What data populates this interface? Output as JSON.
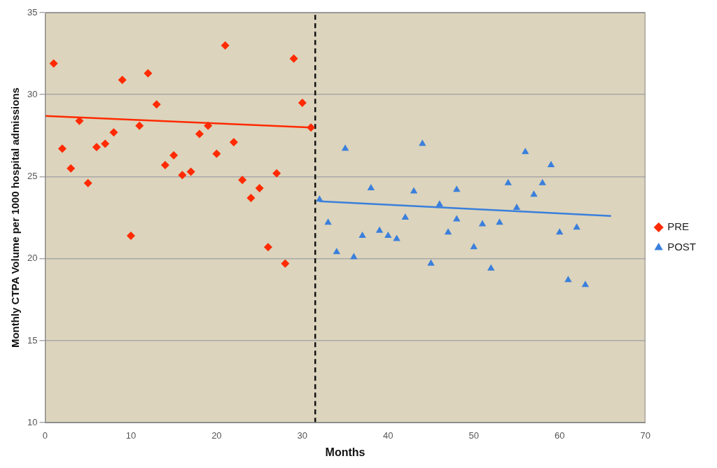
{
  "chart_data": {
    "type": "scatter",
    "x_label": "Months",
    "y_label": "Monthly CTPA Volume per 1000 hospital admissions",
    "xlim": [
      0,
      70
    ],
    "xticks": [
      0,
      10,
      20,
      30,
      40,
      50,
      60,
      70
    ],
    "ylim": [
      10,
      35
    ],
    "yticks": [
      10,
      15,
      20,
      25,
      30,
      35
    ],
    "grid": "y",
    "legend": "right",
    "series": [
      {
        "name": "PRE",
        "color": "#ff2a00",
        "marker": "diamond",
        "x": [
          1,
          2,
          3,
          4,
          5,
          6,
          7,
          8,
          9,
          10,
          11,
          12,
          13,
          14,
          15,
          16,
          17,
          18,
          19,
          20,
          21,
          22,
          23,
          24,
          25,
          26,
          27,
          28,
          29,
          30,
          31
        ],
        "values": [
          31.9,
          26.7,
          25.5,
          28.4,
          24.6,
          26.8,
          27.0,
          27.7,
          30.9,
          21.4,
          28.1,
          31.3,
          29.4,
          25.7,
          26.3,
          25.1,
          25.3,
          27.6,
          28.1,
          26.4,
          33.0,
          27.1,
          24.8,
          23.7,
          24.3,
          20.7,
          25.2,
          19.7,
          32.2,
          29.5,
          28.0
        ],
        "trend": {
          "x": [
            0,
            31
          ],
          "values": [
            28.7,
            28.0
          ]
        }
      },
      {
        "name": "POST",
        "color": "#3a7fdc",
        "marker": "triangle",
        "x": [
          32,
          33,
          34,
          35,
          36,
          37,
          38,
          39,
          40,
          41,
          42,
          43,
          44,
          45,
          46,
          47,
          48,
          48,
          50,
          51,
          52,
          53,
          54,
          55,
          56,
          57,
          58,
          59,
          60,
          61,
          62,
          63
        ],
        "values": [
          23.6,
          22.2,
          20.4,
          26.7,
          20.1,
          21.4,
          24.3,
          21.7,
          21.4,
          21.2,
          22.5,
          24.1,
          27.0,
          19.7,
          23.3,
          21.6,
          24.2,
          22.4,
          20.7,
          22.1,
          19.4,
          22.2,
          24.6,
          23.1,
          26.5,
          23.9,
          24.6,
          25.7,
          21.6,
          18.7,
          21.9,
          18.4
        ],
        "trend": {
          "x": [
            32,
            66
          ],
          "values": [
            23.5,
            22.6
          ]
        }
      }
    ],
    "vline": {
      "x": 31.5,
      "line_style": "dashed"
    }
  }
}
